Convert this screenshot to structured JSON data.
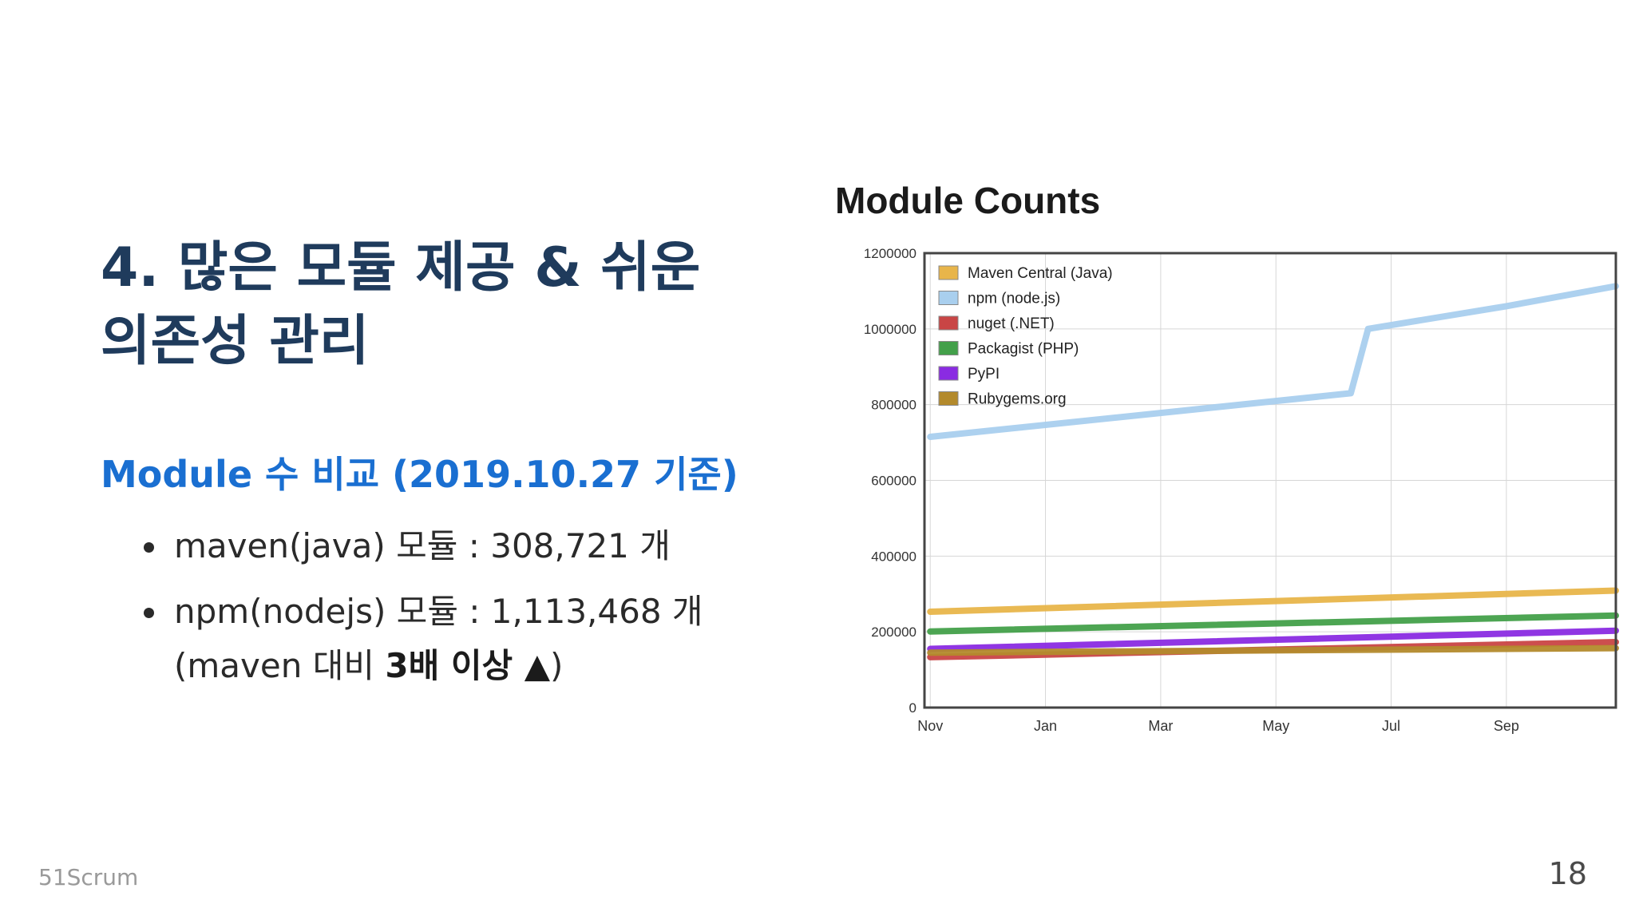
{
  "slide": {
    "title_line1": "4. 많은 모듈 제공 & 쉬운",
    "title_line2": "의존성 관리",
    "subheading": "Module 수 비교 (2019.10.27 기준)",
    "bullet1": "maven(java) 모듈 : 308,721 개",
    "bullet2": "npm(nodejs) 모듈 : 1,113,468 개",
    "bullet2_note_prefix": "(maven 대비 ",
    "bullet2_note_strong": "3배 이상 ▲",
    "bullet2_note_suffix": ")",
    "footer": "51Scrum",
    "page_number": "18"
  },
  "chart_data": {
    "type": "line",
    "title": "Module Counts",
    "xlabel": "",
    "ylabel": "",
    "ylim": [
      0,
      1200000
    ],
    "y_ticks": [
      "0",
      "200000",
      "400000",
      "600000",
      "800000",
      "1000000",
      "1200000"
    ],
    "x_ticks": [
      "Nov",
      "Jan",
      "Mar",
      "May",
      "Jul",
      "Sep"
    ],
    "x_tick_positions": [
      0,
      2,
      4,
      6,
      8,
      10
    ],
    "xlim": [
      -0.1,
      11.9
    ],
    "grid": true,
    "legend_position": "top-left",
    "series": [
      {
        "name": "Maven Central (Java)",
        "color": "#e8b54a",
        "x": [
          0,
          11.9
        ],
        "values": [
          253000,
          309000
        ]
      },
      {
        "name": "npm (node.js)",
        "color": "#a9cfee",
        "x": [
          0,
          7.3,
          7.6,
          10,
          11.9
        ],
        "values": [
          715000,
          830000,
          1000000,
          1060000,
          1113000
        ]
      },
      {
        "name": "nuget (.NET)",
        "color": "#c94545",
        "x": [
          0,
          11.9
        ],
        "values": [
          133000,
          173000
        ]
      },
      {
        "name": "Packagist (PHP)",
        "color": "#43a04a",
        "x": [
          0,
          11.9
        ],
        "values": [
          201000,
          243000
        ]
      },
      {
        "name": "PyPI",
        "color": "#8a2be2",
        "x": [
          0,
          11.9
        ],
        "values": [
          155000,
          203000
        ]
      },
      {
        "name": "Rubygems.org",
        "color": "#b38a2c",
        "x": [
          0,
          11.9
        ],
        "values": [
          145000,
          157000
        ]
      }
    ]
  }
}
